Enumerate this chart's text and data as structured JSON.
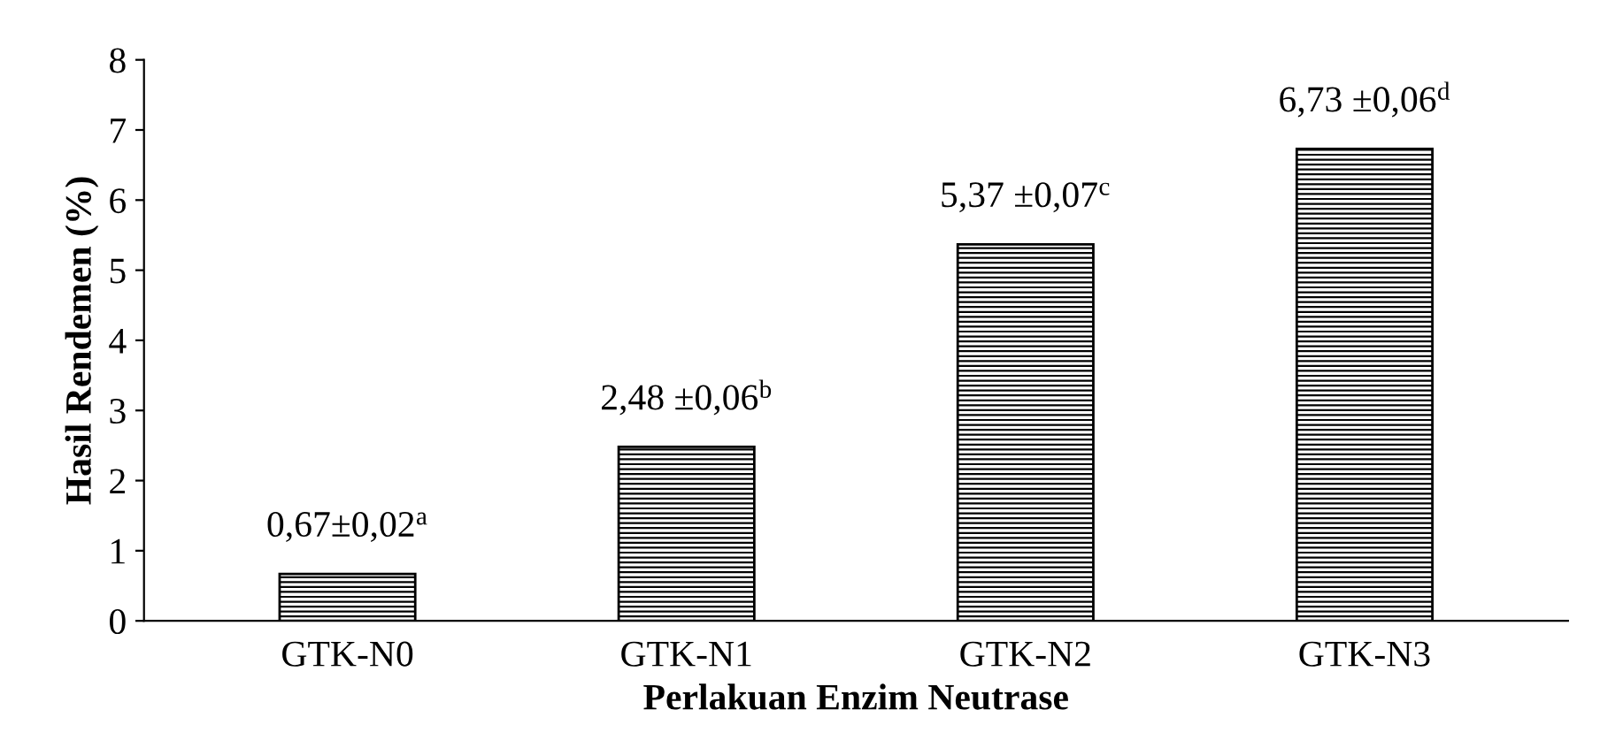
{
  "chart_data": {
    "type": "bar",
    "xlabel": "Perlakuan Enzim Neutrase",
    "ylabel": "Hasil Rendemen (%)",
    "categories": [
      "GTK-N0",
      "GTK-N1",
      "GTK-N2",
      "GTK-N3"
    ],
    "values": [
      0.67,
      2.48,
      5.37,
      6.73
    ],
    "value_labels": [
      "0,67±0,02$^{a}$",
      "2,48 ±0,06$^{b}$",
      "5,37 ±0,07$^{c}$",
      "6,73 ±0,06$^{d}$"
    ],
    "color": "#000000",
    "ylim": [
      0,
      8
    ],
    "yticks": [
      0,
      1,
      2,
      3,
      4,
      5,
      6,
      7,
      8
    ],
    "grid": false,
    "legend": false
  }
}
